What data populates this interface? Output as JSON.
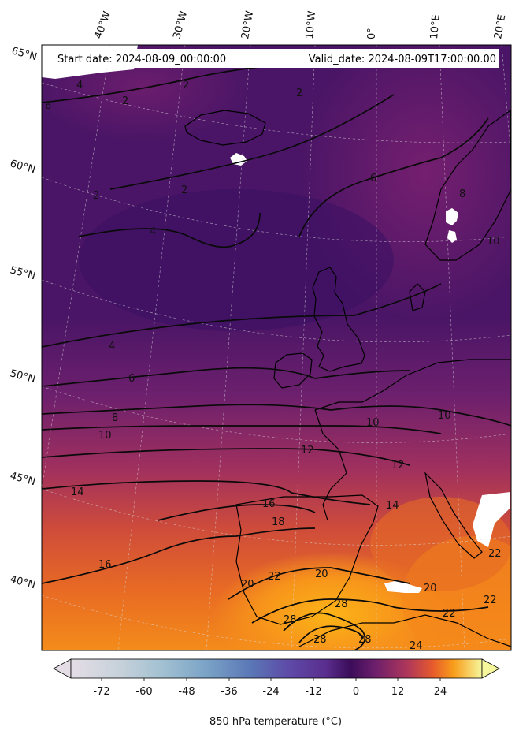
{
  "header": {
    "start_date": "Start date: 2024-08-09_00:00:00",
    "valid_date": "Valid_date: 2024-08-09T17:00:00.00"
  },
  "longitude_labels": [
    "40°W",
    "30°W",
    "20°W",
    "10°W",
    "0°",
    "10°E",
    "20°E"
  ],
  "latitude_labels": [
    "65°N",
    "60°N",
    "55°N",
    "50°N",
    "45°N",
    "40°N"
  ],
  "contour_labels": [
    "2",
    "2",
    "2",
    "2",
    "2",
    "4",
    "4",
    "4",
    "6",
    "6",
    "6",
    "8",
    "8",
    "10",
    "10",
    "10",
    "10",
    "12",
    "12",
    "14",
    "14",
    "16",
    "16",
    "18",
    "20",
    "20",
    "20",
    "22",
    "22",
    "22",
    "22",
    "24",
    "28",
    "28",
    "28",
    "28"
  ],
  "colorbar": {
    "ticks": [
      "-72",
      "-60",
      "-48",
      "-36",
      "-24",
      "-12",
      "0",
      "12",
      "24"
    ],
    "label": "850 hPa temperature ($^\\circ$C)",
    "display_label": "850 hPa temperature (°C)"
  },
  "colors": {
    "cold_violet": "#3d1264",
    "mid_purple": "#6b1f6e",
    "magenta": "#9c2a64",
    "red_orange": "#cf4a3c",
    "orange": "#f07c1e",
    "hot_yellow": "#fcae13"
  }
}
